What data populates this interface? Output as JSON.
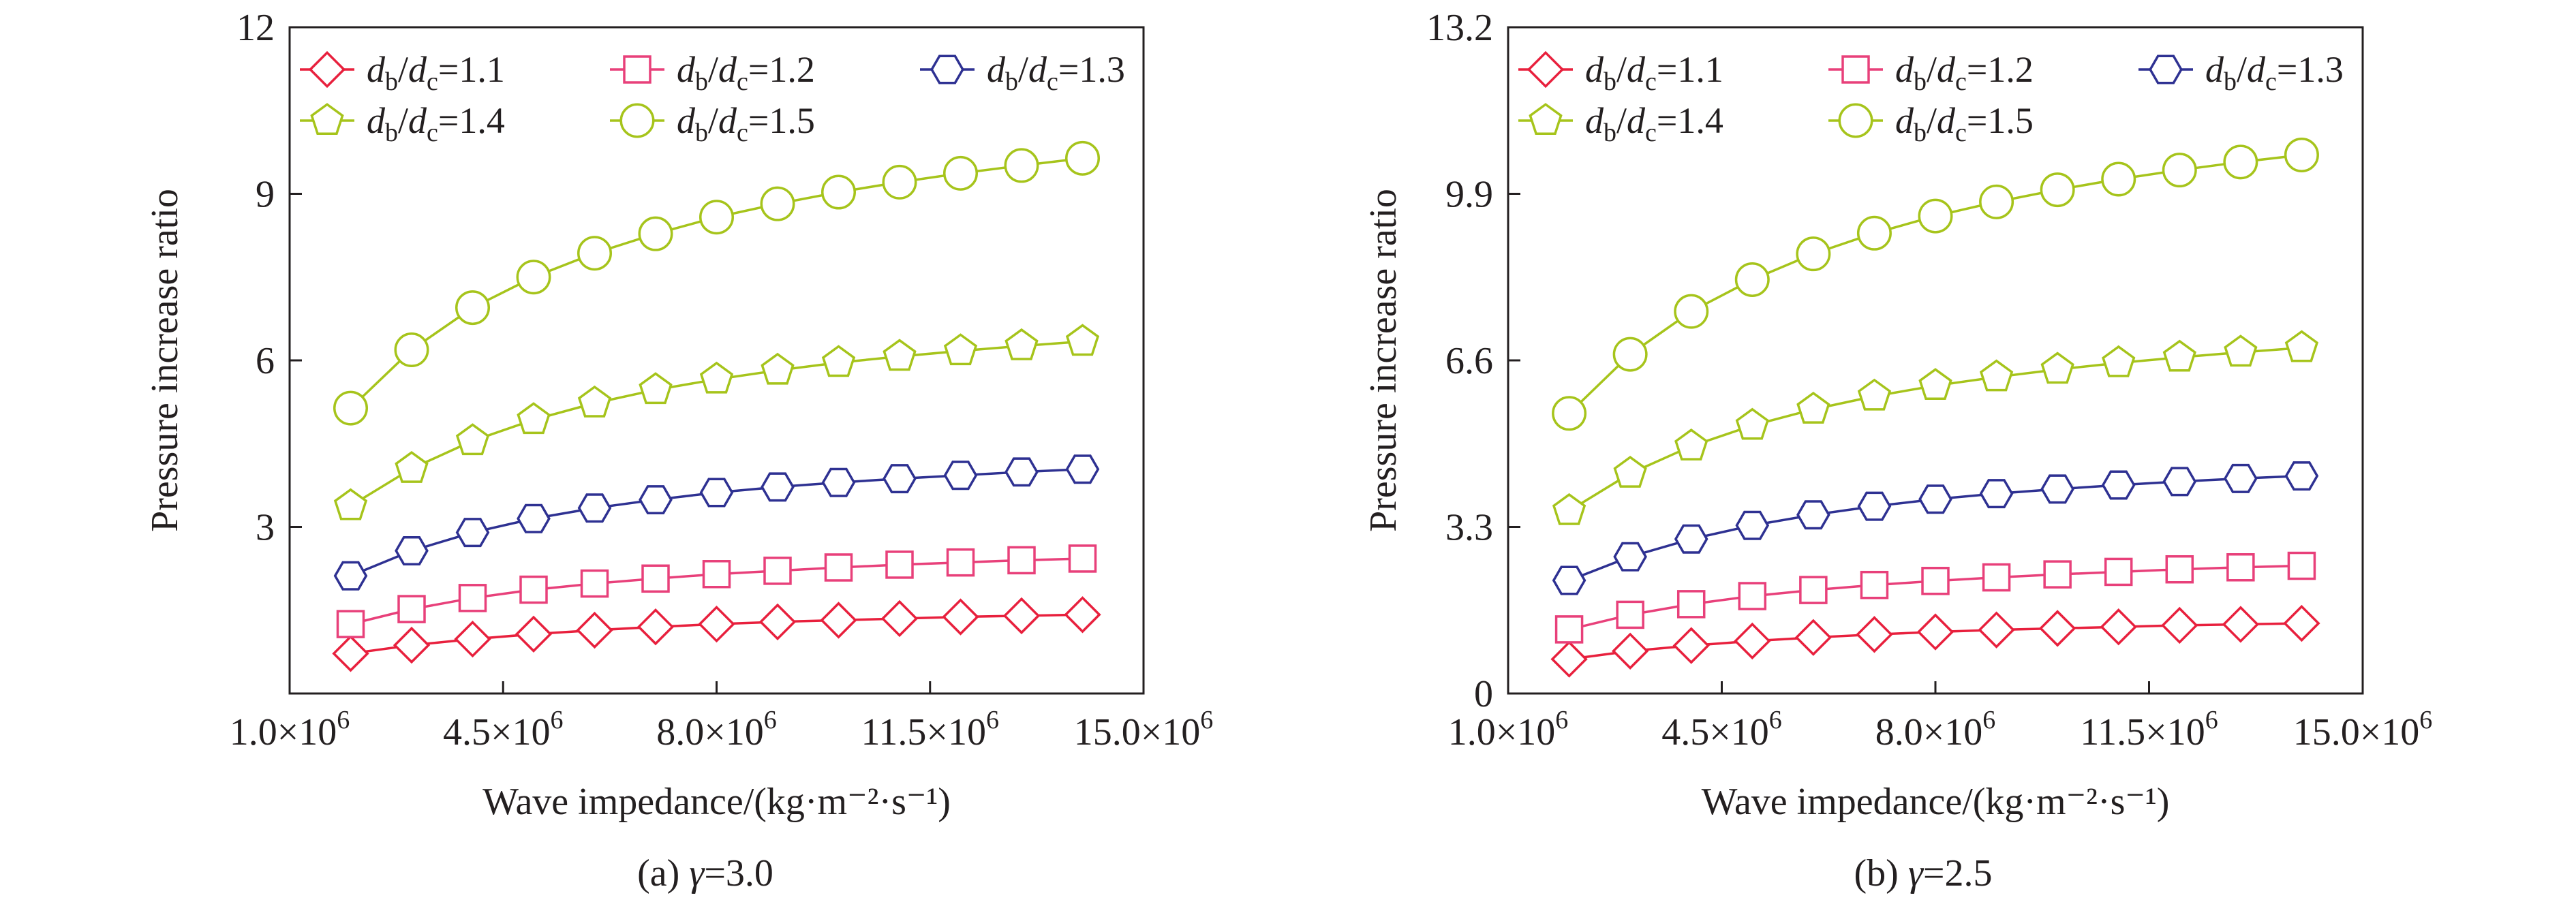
{
  "colors": {
    "series": [
      "#e8203d",
      "#e8407a",
      "#2e3192",
      "#a6c41b",
      "#a6c41b"
    ],
    "axis": "#231f20"
  },
  "chart_data": [
    {
      "type": "line",
      "caption_prefix": "(a) ",
      "caption_var": "γ",
      "caption_value": "=3.0",
      "xlabel": "Wave impedance/(kg·m⁻²·s⁻¹)",
      "ylabel": "Pressure increase ratio",
      "xlim": [
        1000000.0,
        15000000.0
      ],
      "ylim": [
        0,
        12
      ],
      "xticks": [
        1000000.0,
        4500000.0,
        8000000.0,
        11500000.0,
        15000000.0
      ],
      "xtick_mantissas": [
        "1.0",
        "4.5",
        "8.0",
        "11.5",
        "15.0"
      ],
      "xtick_suffix": "×10",
      "xtick_exp": "6",
      "yticks": [
        3,
        6,
        9,
        12
      ],
      "ytick_labels": [
        "3",
        "6",
        "9",
        "12"
      ],
      "x": [
        2000000.0,
        3000000.0,
        4000000.0,
        5000000.0,
        6000000.0,
        7000000.0,
        8000000.0,
        9000000.0,
        10000000.0,
        11000000.0,
        12000000.0,
        13000000.0,
        14000000.0
      ],
      "series": [
        {
          "name_var1": "d",
          "name_sub1": "b",
          "name_sep": "/",
          "name_var2": "d",
          "name_sub2": "c",
          "name_value": "=1.1",
          "marker": "diamond-icon",
          "values": [
            0.72,
            0.87,
            0.98,
            1.07,
            1.14,
            1.2,
            1.25,
            1.29,
            1.32,
            1.35,
            1.38,
            1.4,
            1.42
          ]
        },
        {
          "name_var1": "d",
          "name_sub1": "b",
          "name_sep": "/",
          "name_var2": "d",
          "name_sub2": "c",
          "name_value": "=1.2",
          "marker": "square-icon",
          "values": [
            1.25,
            1.52,
            1.72,
            1.87,
            1.98,
            2.07,
            2.15,
            2.21,
            2.27,
            2.32,
            2.36,
            2.4,
            2.43
          ]
        },
        {
          "name_var1": "d",
          "name_sub1": "b",
          "name_sep": "/",
          "name_var2": "d",
          "name_sub2": "c",
          "name_value": "=1.3",
          "marker": "hexagon-icon",
          "values": [
            2.12,
            2.57,
            2.9,
            3.15,
            3.34,
            3.49,
            3.62,
            3.72,
            3.8,
            3.87,
            3.93,
            3.99,
            4.04
          ]
        },
        {
          "name_var1": "d",
          "name_sub1": "b",
          "name_sep": "/",
          "name_var2": "d",
          "name_sub2": "c",
          "name_value": "=1.4",
          "marker": "pentagon-icon",
          "values": [
            3.38,
            4.05,
            4.55,
            4.93,
            5.23,
            5.47,
            5.66,
            5.82,
            5.96,
            6.07,
            6.17,
            6.26,
            6.34
          ]
        },
        {
          "name_var1": "d",
          "name_sub1": "b",
          "name_sep": "/",
          "name_var2": "d",
          "name_sub2": "c",
          "name_value": "=1.5",
          "marker": "circle-icon",
          "values": [
            5.14,
            6.19,
            6.95,
            7.5,
            7.93,
            8.28,
            8.58,
            8.82,
            9.03,
            9.21,
            9.37,
            9.51,
            9.64
          ]
        }
      ]
    },
    {
      "type": "line",
      "caption_prefix": "(b) ",
      "caption_var": "γ",
      "caption_value": "=2.5",
      "xlabel": "Wave impedance/(kg·m⁻²·s⁻¹)",
      "ylabel": "Pressure increase ratio",
      "xlim": [
        1000000.0,
        15000000.0
      ],
      "ylim": [
        0,
        13.2
      ],
      "xticks": [
        1000000.0,
        4500000.0,
        8000000.0,
        11500000.0,
        15000000.0
      ],
      "xtick_mantissas": [
        "1.0",
        "4.5",
        "8.0",
        "11.5",
        "15.0"
      ],
      "xtick_suffix": "×10",
      "xtick_exp": "6",
      "yticks": [
        0,
        3.3,
        6.6,
        9.9,
        13.2
      ],
      "ytick_labels": [
        "0",
        "3.3",
        "6.6",
        "9.9",
        "13.2"
      ],
      "x": [
        2000000.0,
        3000000.0,
        4000000.0,
        5000000.0,
        6000000.0,
        7000000.0,
        8000000.0,
        9000000.0,
        10000000.0,
        11000000.0,
        12000000.0,
        13000000.0,
        14000000.0
      ],
      "series": [
        {
          "name_var1": "d",
          "name_sub1": "b",
          "name_sep": "/",
          "name_var2": "d",
          "name_sub2": "c",
          "name_value": "=1.1",
          "marker": "diamond-icon",
          "values": [
            0.68,
            0.84,
            0.95,
            1.04,
            1.11,
            1.17,
            1.22,
            1.26,
            1.29,
            1.32,
            1.35,
            1.37,
            1.39
          ]
        },
        {
          "name_var1": "d",
          "name_sub1": "b",
          "name_sep": "/",
          "name_var2": "d",
          "name_sub2": "c",
          "name_value": "=1.2",
          "marker": "square-icon",
          "values": [
            1.27,
            1.56,
            1.77,
            1.93,
            2.05,
            2.15,
            2.23,
            2.3,
            2.36,
            2.41,
            2.46,
            2.5,
            2.53
          ]
        },
        {
          "name_var1": "d",
          "name_sub1": "b",
          "name_sep": "/",
          "name_var2": "d",
          "name_sub2": "c",
          "name_value": "=1.3",
          "marker": "hexagon-icon",
          "values": [
            2.24,
            2.71,
            3.06,
            3.33,
            3.54,
            3.71,
            3.85,
            3.96,
            4.05,
            4.13,
            4.2,
            4.26,
            4.31
          ]
        },
        {
          "name_var1": "d",
          "name_sub1": "b",
          "name_sep": "/",
          "name_var2": "d",
          "name_sub2": "c",
          "name_value": "=1.4",
          "marker": "pentagon-icon",
          "values": [
            3.62,
            4.36,
            4.9,
            5.31,
            5.63,
            5.89,
            6.1,
            6.27,
            6.42,
            6.55,
            6.66,
            6.76,
            6.85
          ]
        },
        {
          "name_var1": "d",
          "name_sub1": "b",
          "name_sep": "/",
          "name_var2": "d",
          "name_sub2": "c",
          "name_value": "=1.5",
          "marker": "circle-icon",
          "values": [
            5.55,
            6.72,
            7.57,
            8.2,
            8.71,
            9.12,
            9.46,
            9.74,
            9.98,
            10.19,
            10.37,
            10.53,
            10.67
          ]
        }
      ]
    }
  ]
}
